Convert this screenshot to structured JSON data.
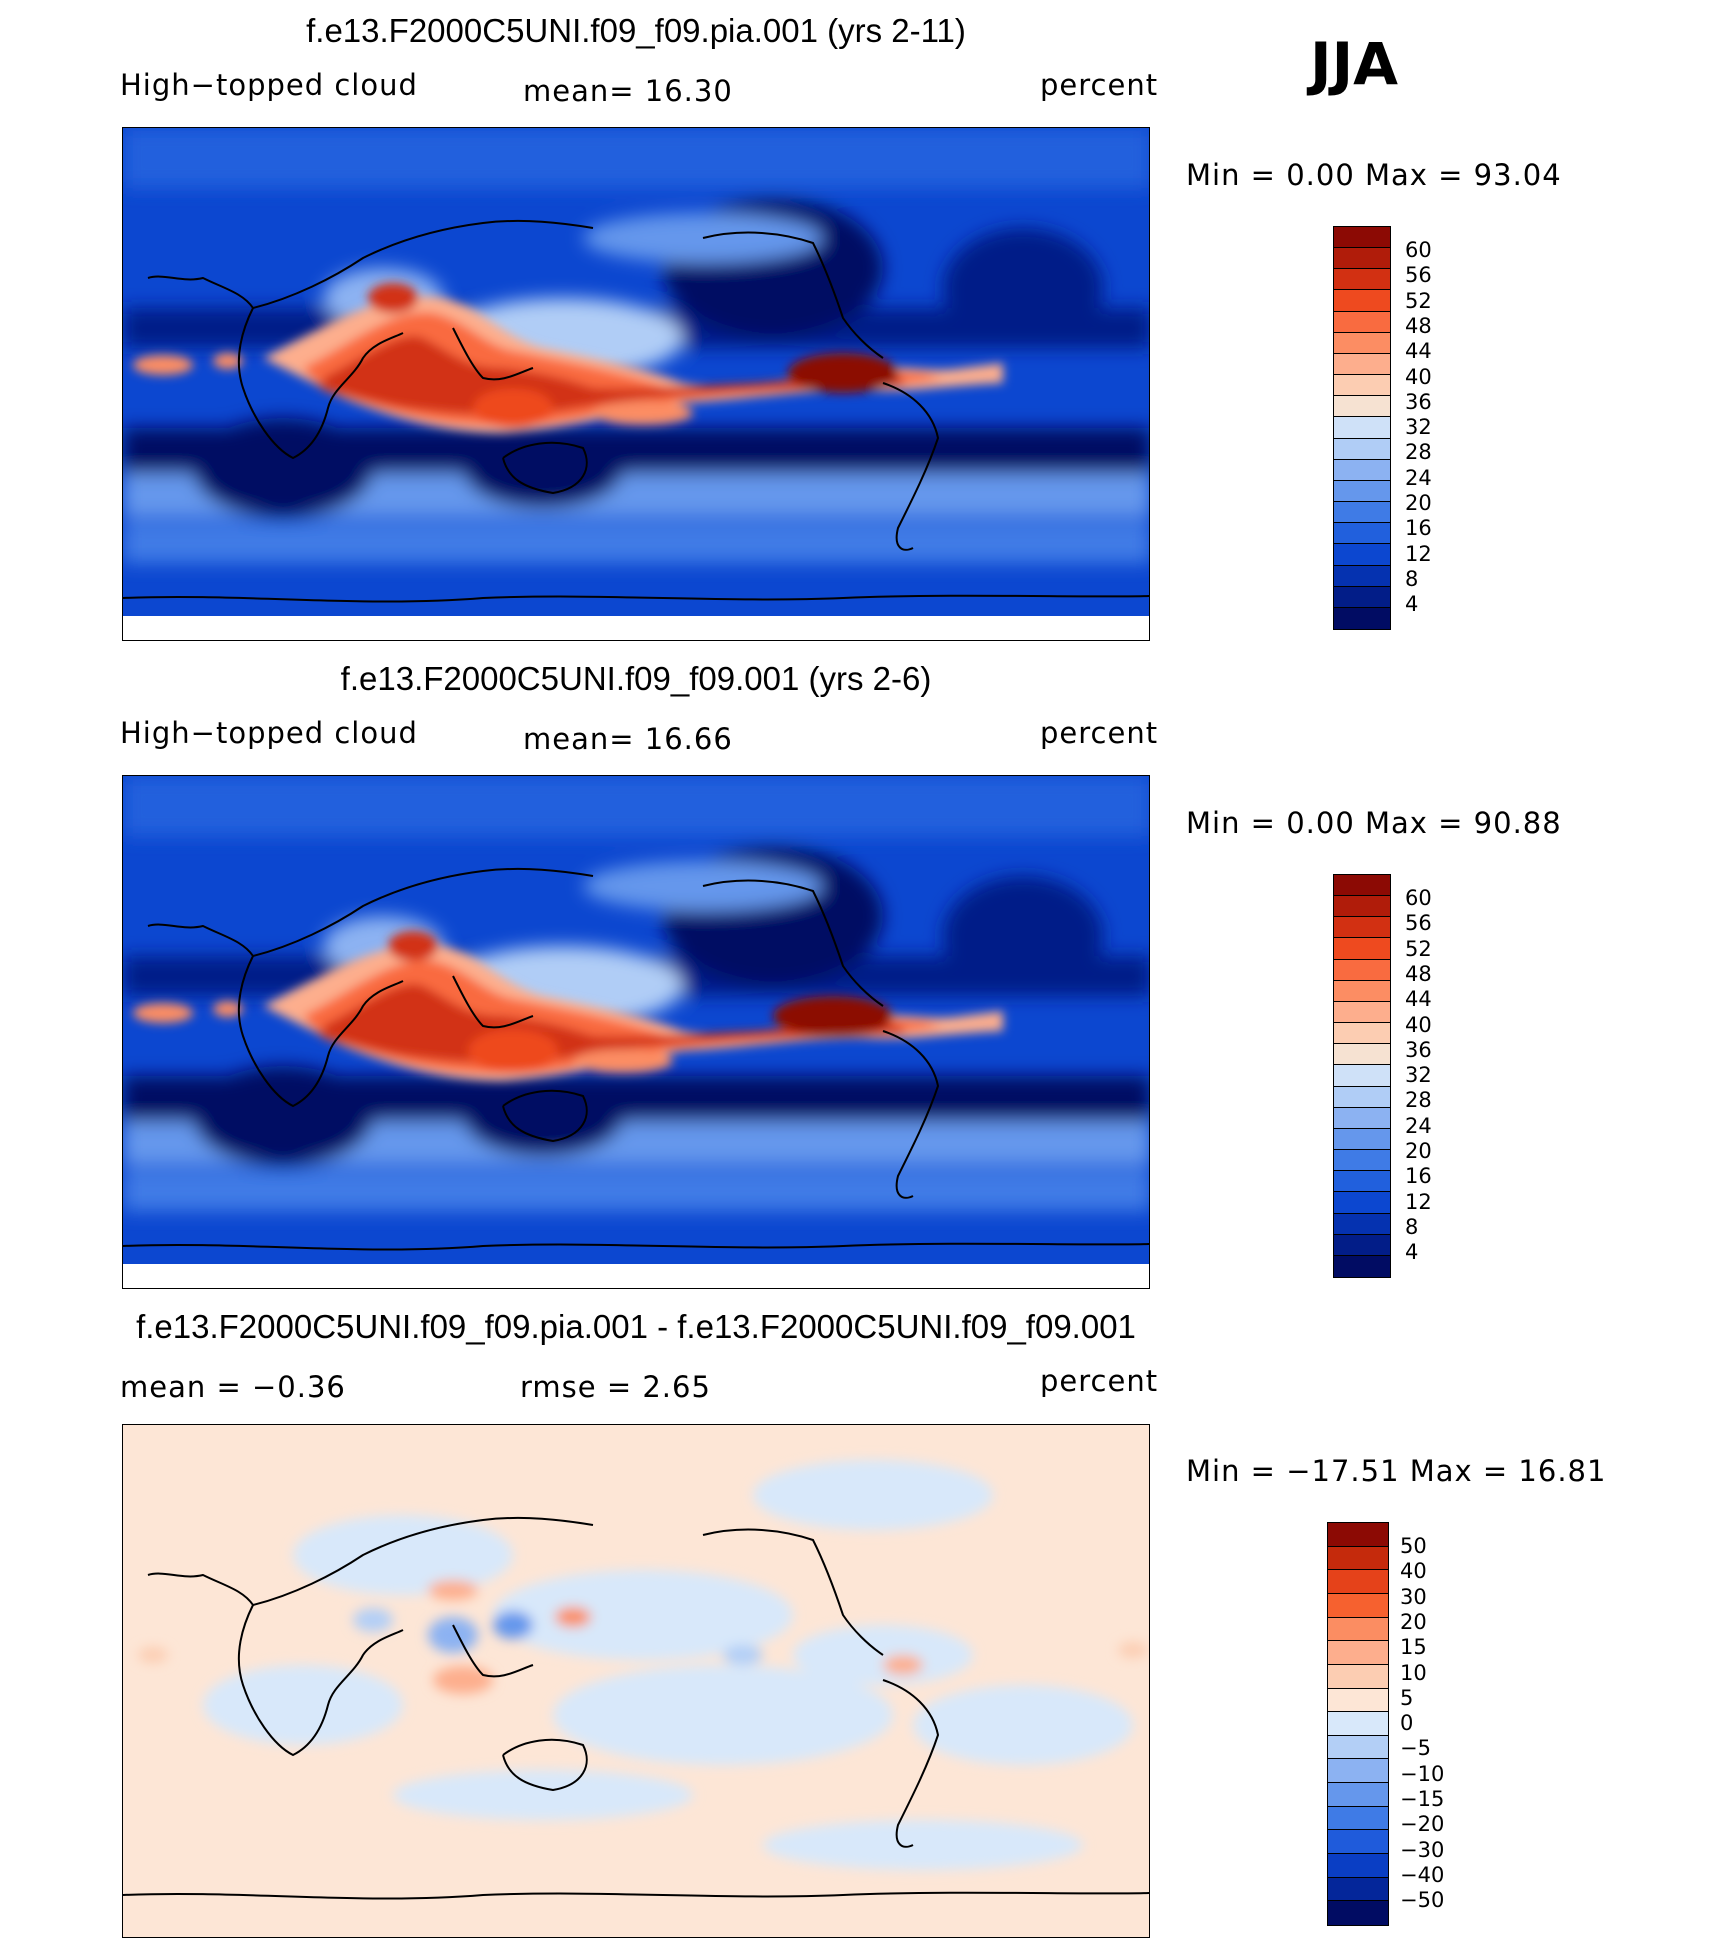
{
  "season": "JJA",
  "colors": {
    "pos": [
      "#f6e2d2",
      "#fccdb2",
      "#fdae8d",
      "#fc8d63",
      "#f96b40",
      "#ee4a1f",
      "#d23012",
      "#b01c0a",
      "#8c0a04"
    ],
    "neg": [
      "#cfe1f8",
      "#b0cdf6",
      "#8cb2f2",
      "#6597ec",
      "#3f7be6",
      "#2160dd",
      "#0c47d0",
      "#0532b0",
      "#021d88",
      "#010c63"
    ],
    "diff_pos": [
      "#fde6d6",
      "#fccdb2",
      "#fdae8d",
      "#fb8d62",
      "#f6612f",
      "#e5421a",
      "#c52a0c",
      "#8c0a04"
    ],
    "diff_neg": [
      "#d8e8fa",
      "#b3cff6",
      "#8cb2f2",
      "#6597ec",
      "#3f7be6",
      "#1f5bdb",
      "#0a3ec4",
      "#04269a",
      "#010c63"
    ]
  },
  "panels": [
    {
      "title": "f.e13.F2000C5UNI.f09_f09.pia.001 (yrs 2-11)",
      "left_label": "High−topped cloud",
      "stat": "mean=   16.30",
      "unit": "percent",
      "minmax": "Min =     0.00  Max =    93.04",
      "mean_value": 16.3,
      "min_value": 0.0,
      "max_value": 93.04,
      "colorbar_ticks": [
        "60",
        "56",
        "52",
        "48",
        "44",
        "40",
        "36",
        "32",
        "28",
        "24",
        "20",
        "16",
        "12",
        "8",
        "4"
      ]
    },
    {
      "title": "f.e13.F2000C5UNI.f09_f09.001 (yrs 2-6)",
      "left_label": "High−topped cloud",
      "stat": "mean=   16.66",
      "unit": "percent",
      "minmax": "Min =     0.00  Max =    90.88",
      "mean_value": 16.66,
      "min_value": 0.0,
      "max_value": 90.88,
      "colorbar_ticks": [
        "60",
        "56",
        "52",
        "48",
        "44",
        "40",
        "36",
        "32",
        "28",
        "24",
        "20",
        "16",
        "12",
        "8",
        "4"
      ]
    },
    {
      "title": "f.e13.F2000C5UNI.f09_f09.pia.001 - f.e13.F2000C5UNI.f09_f09.001",
      "left_label": "mean  =    −0.36",
      "stat": "rmse  =     2.65",
      "unit": "percent",
      "minmax": "Min  =  −17.51  Max  =    16.81",
      "mean_value": -0.36,
      "rmse_value": 2.65,
      "min_value": -17.51,
      "max_value": 16.81,
      "colorbar_ticks": [
        "50",
        "40",
        "30",
        "20",
        "15",
        "10",
        "5",
        "0",
        "−5",
        "−10",
        "−15",
        "−20",
        "−30",
        "−40",
        "−50"
      ]
    }
  ]
}
